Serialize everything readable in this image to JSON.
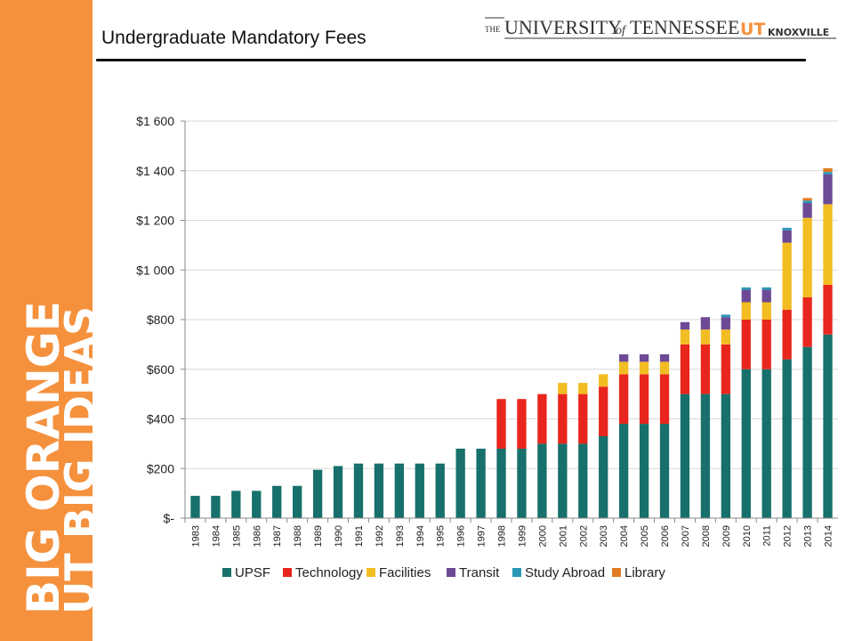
{
  "slide": {
    "title": "Undergraduate Mandatory Fees"
  },
  "logo": {
    "the": "THE",
    "university": "UNIVERSITY",
    "of": "of",
    "tennessee": "TENNESSEE",
    "ut": "UT",
    "campus": "KNOXVILLE"
  },
  "side_band": {
    "text": "BIG ORANGE BIG IDEAS",
    "color": "#f5913d"
  },
  "chart_data": {
    "type": "bar",
    "stacked": true,
    "categories": [
      "1983",
      "1984",
      "1985",
      "1986",
      "1987",
      "1988",
      "1989",
      "1990",
      "1991",
      "1992",
      "1993",
      "1994",
      "1995",
      "1996",
      "1997",
      "1998",
      "1999",
      "2000",
      "2001",
      "2002",
      "2003",
      "2004",
      "2005",
      "2006",
      "2007",
      "2008",
      "2009",
      "2010",
      "2011",
      "2012",
      "2013",
      "2014"
    ],
    "series": [
      {
        "name": "UPSF",
        "color": "#17706b",
        "values": [
          90,
          90,
          110,
          110,
          130,
          130,
          195,
          210,
          220,
          220,
          220,
          220,
          220,
          280,
          280,
          280,
          280,
          300,
          300,
          300,
          330,
          380,
          380,
          380,
          500,
          500,
          500,
          600,
          600,
          640,
          690,
          740
        ]
      },
      {
        "name": "Technology",
        "color": "#e8261d",
        "values": [
          0,
          0,
          0,
          0,
          0,
          0,
          0,
          0,
          0,
          0,
          0,
          0,
          0,
          0,
          0,
          200,
          200,
          200,
          200,
          200,
          200,
          200,
          200,
          200,
          200,
          200,
          200,
          200,
          200,
          200,
          200,
          200
        ]
      },
      {
        "name": "Facilities",
        "color": "#f2bd22",
        "values": [
          0,
          0,
          0,
          0,
          0,
          0,
          0,
          0,
          0,
          0,
          0,
          0,
          0,
          0,
          0,
          0,
          0,
          0,
          45,
          45,
          50,
          50,
          50,
          50,
          60,
          60,
          60,
          70,
          70,
          270,
          320,
          325
        ]
      },
      {
        "name": "Transit",
        "color": "#6d4a96",
        "values": [
          0,
          0,
          0,
          0,
          0,
          0,
          0,
          0,
          0,
          0,
          0,
          0,
          0,
          0,
          0,
          0,
          0,
          0,
          0,
          0,
          0,
          30,
          30,
          30,
          30,
          50,
          50,
          50,
          50,
          50,
          60,
          120
        ]
      },
      {
        "name": "Study Abroad",
        "color": "#2b98b8",
        "values": [
          0,
          0,
          0,
          0,
          0,
          0,
          0,
          0,
          0,
          0,
          0,
          0,
          0,
          0,
          0,
          0,
          0,
          0,
          0,
          0,
          0,
          0,
          0,
          0,
          0,
          0,
          10,
          10,
          10,
          10,
          10,
          10
        ]
      },
      {
        "name": "Library",
        "color": "#e07b22",
        "values": [
          0,
          0,
          0,
          0,
          0,
          0,
          0,
          0,
          0,
          0,
          0,
          0,
          0,
          0,
          0,
          0,
          0,
          0,
          0,
          0,
          0,
          0,
          0,
          0,
          0,
          0,
          0,
          0,
          0,
          0,
          10,
          15
        ]
      }
    ],
    "yticks": [
      0,
      200,
      400,
      600,
      800,
      1000,
      1200,
      1400,
      1600
    ],
    "ytick_labels": [
      "$-",
      "$200",
      "$400",
      "$600",
      "$800",
      "$1 000",
      "$1 200",
      "$1 400",
      "$1 600"
    ],
    "ylim": [
      0,
      1600
    ],
    "grid": true,
    "legend_position": "bottom"
  }
}
